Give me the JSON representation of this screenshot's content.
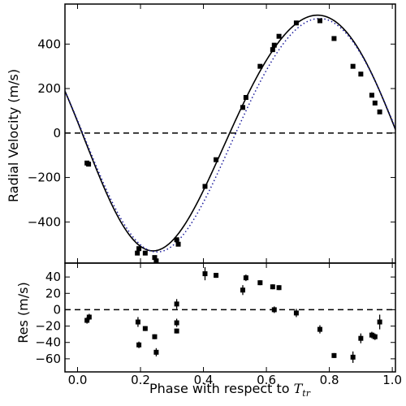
{
  "chart_data": [
    {
      "type": "scatter",
      "panel": "top",
      "title": "",
      "xlabel": "",
      "ylabel": "Radial Velocity (m/s)",
      "xlim": [
        -0.04,
        1.01
      ],
      "ylim": [
        -585,
        580
      ],
      "x_ticks": [],
      "y_ticks": [
        400,
        200,
        0,
        -200,
        -400
      ],
      "y_tick_labels": [
        "400",
        "200",
        "0",
        "−200",
        "−400"
      ],
      "grid": false,
      "legend": "none",
      "reference_line": {
        "y": 0,
        "style": "dashed"
      },
      "models": [
        {
          "style": "solid",
          "color": "#000000",
          "gamma": 0,
          "K": 530,
          "phase_of_max": 0.75,
          "skew": 0.12,
          "skew_phase": 0.15
        },
        {
          "style": "dotted",
          "color": "#1a1a9c",
          "gamma": -10,
          "K": 525,
          "phase_of_max": 0.76,
          "skew": 0.08,
          "skew_phase": 0.15
        }
      ],
      "series": [
        {
          "marker": "square",
          "color": "#000000",
          "points": [
            {
              "x": 0.03,
              "y": -135
            },
            {
              "x": 0.035,
              "y": -140
            },
            {
              "x": 0.19,
              "y": -540
            },
            {
              "x": 0.195,
              "y": -520
            },
            {
              "x": 0.215,
              "y": -540
            },
            {
              "x": 0.245,
              "y": -560
            },
            {
              "x": 0.25,
              "y": -575
            },
            {
              "x": 0.315,
              "y": -480
            },
            {
              "x": 0.32,
              "y": -500
            },
            {
              "x": 0.405,
              "y": -240
            },
            {
              "x": 0.44,
              "y": -120
            },
            {
              "x": 0.525,
              "y": 115
            },
            {
              "x": 0.535,
              "y": 160
            },
            {
              "x": 0.58,
              "y": 300
            },
            {
              "x": 0.62,
              "y": 375
            },
            {
              "x": 0.625,
              "y": 395
            },
            {
              "x": 0.64,
              "y": 435
            },
            {
              "x": 0.695,
              "y": 495
            },
            {
              "x": 0.77,
              "y": 505
            },
            {
              "x": 0.815,
              "y": 425
            },
            {
              "x": 0.875,
              "y": 300
            },
            {
              "x": 0.9,
              "y": 265
            },
            {
              "x": 0.935,
              "y": 170
            },
            {
              "x": 0.945,
              "y": 135
            },
            {
              "x": 0.96,
              "y": 95
            }
          ]
        }
      ]
    },
    {
      "type": "scatter",
      "panel": "bottom",
      "title": "",
      "xlabel": "Phase with respect to ",
      "xlabel_symbol": "T",
      "xlabel_subscript": "tr",
      "ylabel": "Res (m/s)",
      "xlim": [
        -0.04,
        1.01
      ],
      "ylim": [
        -76,
        57
      ],
      "x_ticks": [
        0.0,
        0.2,
        0.4,
        0.6,
        0.8,
        1.0
      ],
      "x_tick_labels": [
        "0.0",
        "0.2",
        "0.4",
        "0.6",
        "0.8",
        "1.0"
      ],
      "y_ticks": [
        40,
        20,
        0,
        -20,
        -40,
        -60
      ],
      "y_tick_labels": [
        "40",
        "20",
        "0",
        "−20",
        "−40",
        "−60"
      ],
      "grid": false,
      "legend": "none",
      "reference_line": {
        "y": 0,
        "style": "dashed"
      },
      "series": [
        {
          "marker": "square",
          "color": "#000000",
          "points": [
            {
              "x": 0.03,
              "y": -13,
              "err": 4
            },
            {
              "x": 0.037,
              "y": -9,
              "err": 4
            },
            {
              "x": 0.192,
              "y": -15,
              "err": 6
            },
            {
              "x": 0.195,
              "y": -43,
              "err": 4
            },
            {
              "x": 0.215,
              "y": -23,
              "err": 3
            },
            {
              "x": 0.245,
              "y": -33,
              "err": 3
            },
            {
              "x": 0.25,
              "y": -52,
              "err": 5
            },
            {
              "x": 0.315,
              "y": 7,
              "err": 6
            },
            {
              "x": 0.315,
              "y": -16,
              "err": 5
            },
            {
              "x": 0.315,
              "y": -26,
              "err": 3
            },
            {
              "x": 0.405,
              "y": 44,
              "err": 8
            },
            {
              "x": 0.44,
              "y": 42,
              "err": 3
            },
            {
              "x": 0.525,
              "y": 24,
              "err": 6
            },
            {
              "x": 0.535,
              "y": 39,
              "err": 4
            },
            {
              "x": 0.58,
              "y": 33,
              "err": 3
            },
            {
              "x": 0.62,
              "y": 28,
              "err": 3
            },
            {
              "x": 0.625,
              "y": 0,
              "err": 4
            },
            {
              "x": 0.64,
              "y": 27,
              "err": 3
            },
            {
              "x": 0.695,
              "y": -4,
              "err": 5
            },
            {
              "x": 0.77,
              "y": -24,
              "err": 5
            },
            {
              "x": 0.815,
              "y": -56,
              "err": 3
            },
            {
              "x": 0.875,
              "y": -58,
              "err": 7
            },
            {
              "x": 0.9,
              "y": -35,
              "err": 6
            },
            {
              "x": 0.935,
              "y": -31,
              "err": 4
            },
            {
              "x": 0.945,
              "y": -33,
              "err": 4
            },
            {
              "x": 0.96,
              "y": -15,
              "err": 9
            }
          ]
        }
      ]
    }
  ]
}
